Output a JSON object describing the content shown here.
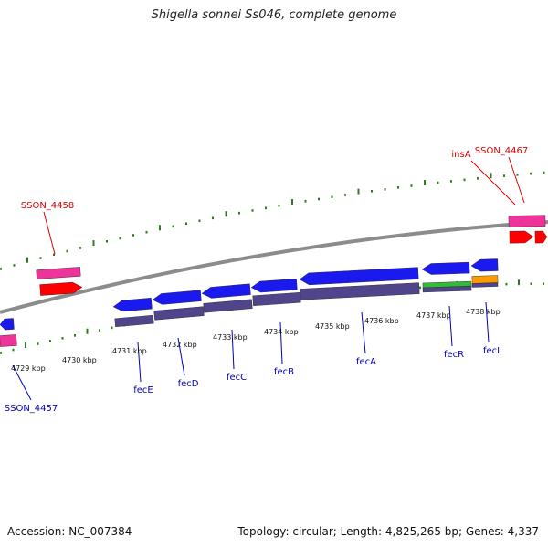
{
  "title": "Shigella sonnei Ss046, complete genome",
  "footer": {
    "accession": "Accession: NC_007384",
    "topology": "Topology: circular; Length: 4,825,265 bp; Genes: 4,337"
  },
  "colors": {
    "backbone": "#8c8c8c",
    "tick": "#2e7d1c",
    "gene_forward": "#ff0000",
    "gene_reverse": "#1a1aee",
    "cds_forward": "#ee3399",
    "cds_reverse": "#50458a",
    "rrna_green": "#33bb33",
    "orange": "#ff9900",
    "label_red": "#dd0000",
    "label_blue": "#0000bb"
  },
  "scale_labels": [
    "4729 kbp",
    "4730 kbp",
    "4731 kbp",
    "4732 kbp",
    "4733 kbp",
    "4734 kbp",
    "4735 kbp",
    "4736 kbp",
    "4737 kbp",
    "4738 kbp"
  ],
  "forward_genes": [
    "SSON_4458",
    "insA",
    "SSON_4467"
  ],
  "reverse_genes": [
    "SSON_4457",
    "fecE",
    "fecD",
    "fecC",
    "fecB",
    "fecA",
    "fecR",
    "fecI"
  ]
}
